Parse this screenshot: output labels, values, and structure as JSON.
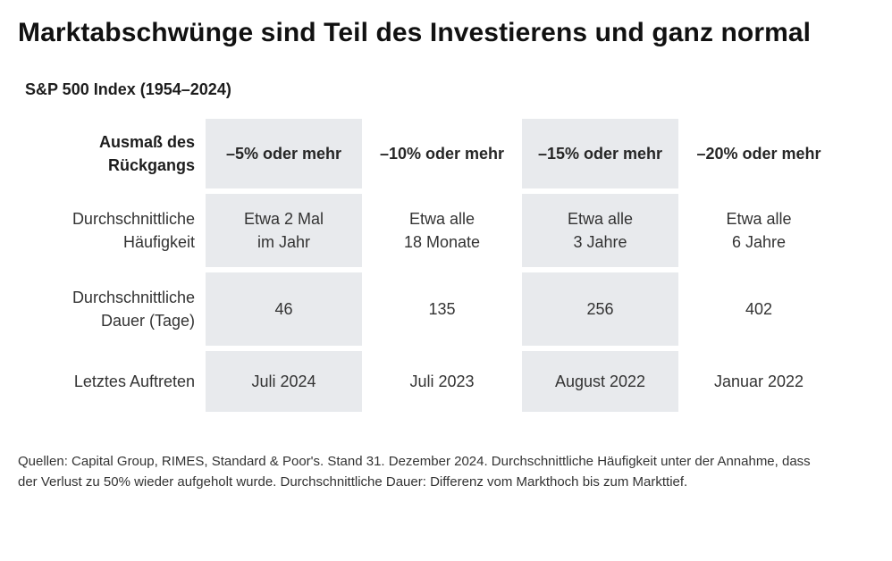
{
  "page": {
    "title": "Marktabschwünge sind Teil des Investierens und ganz normal",
    "subtitle": "S&P 500 Index (1954–2024)",
    "footnote": "Quellen: Capital Group, RIMES, Standard & Poor's. Stand 31. Dezember 2024. Durchschnittliche Häufigkeit unter der Annahme, dass der Verlust zu 50% wieder aufgeholt wurde. Durchschnittliche Dauer: Differenz vom Markthoch bis zum Markttief."
  },
  "chart_data": {
    "type": "table",
    "title": "S&P 500 Index (1954–2024)",
    "corner_label": "Ausmaß des\nRückgangs",
    "columns": [
      "–5% oder mehr",
      "–10% oder mehr",
      "–15% oder mehr",
      "–20% oder mehr"
    ],
    "rows": [
      {
        "label": "Durchschnittliche\nHäufigkeit",
        "values": [
          "Etwa 2 Mal\nim Jahr",
          "Etwa alle\n18 Monate",
          "Etwa alle\n3 Jahre",
          "Etwa alle\n6 Jahre"
        ]
      },
      {
        "label": "Durchschnittliche\nDauer (Tage)",
        "values": [
          "46",
          "135",
          "256",
          "402"
        ]
      },
      {
        "label": "Letztes Auftreten",
        "values": [
          "Juli 2024",
          "Juli 2023",
          "August 2022",
          "Januar 2022"
        ]
      }
    ],
    "shaded_columns": [
      0,
      2
    ],
    "layout": {
      "grid": false,
      "legend": "none"
    },
    "colors": {
      "shade": "#e8eaed",
      "text": "#333333",
      "title": "#111111",
      "background": "#ffffff"
    }
  }
}
